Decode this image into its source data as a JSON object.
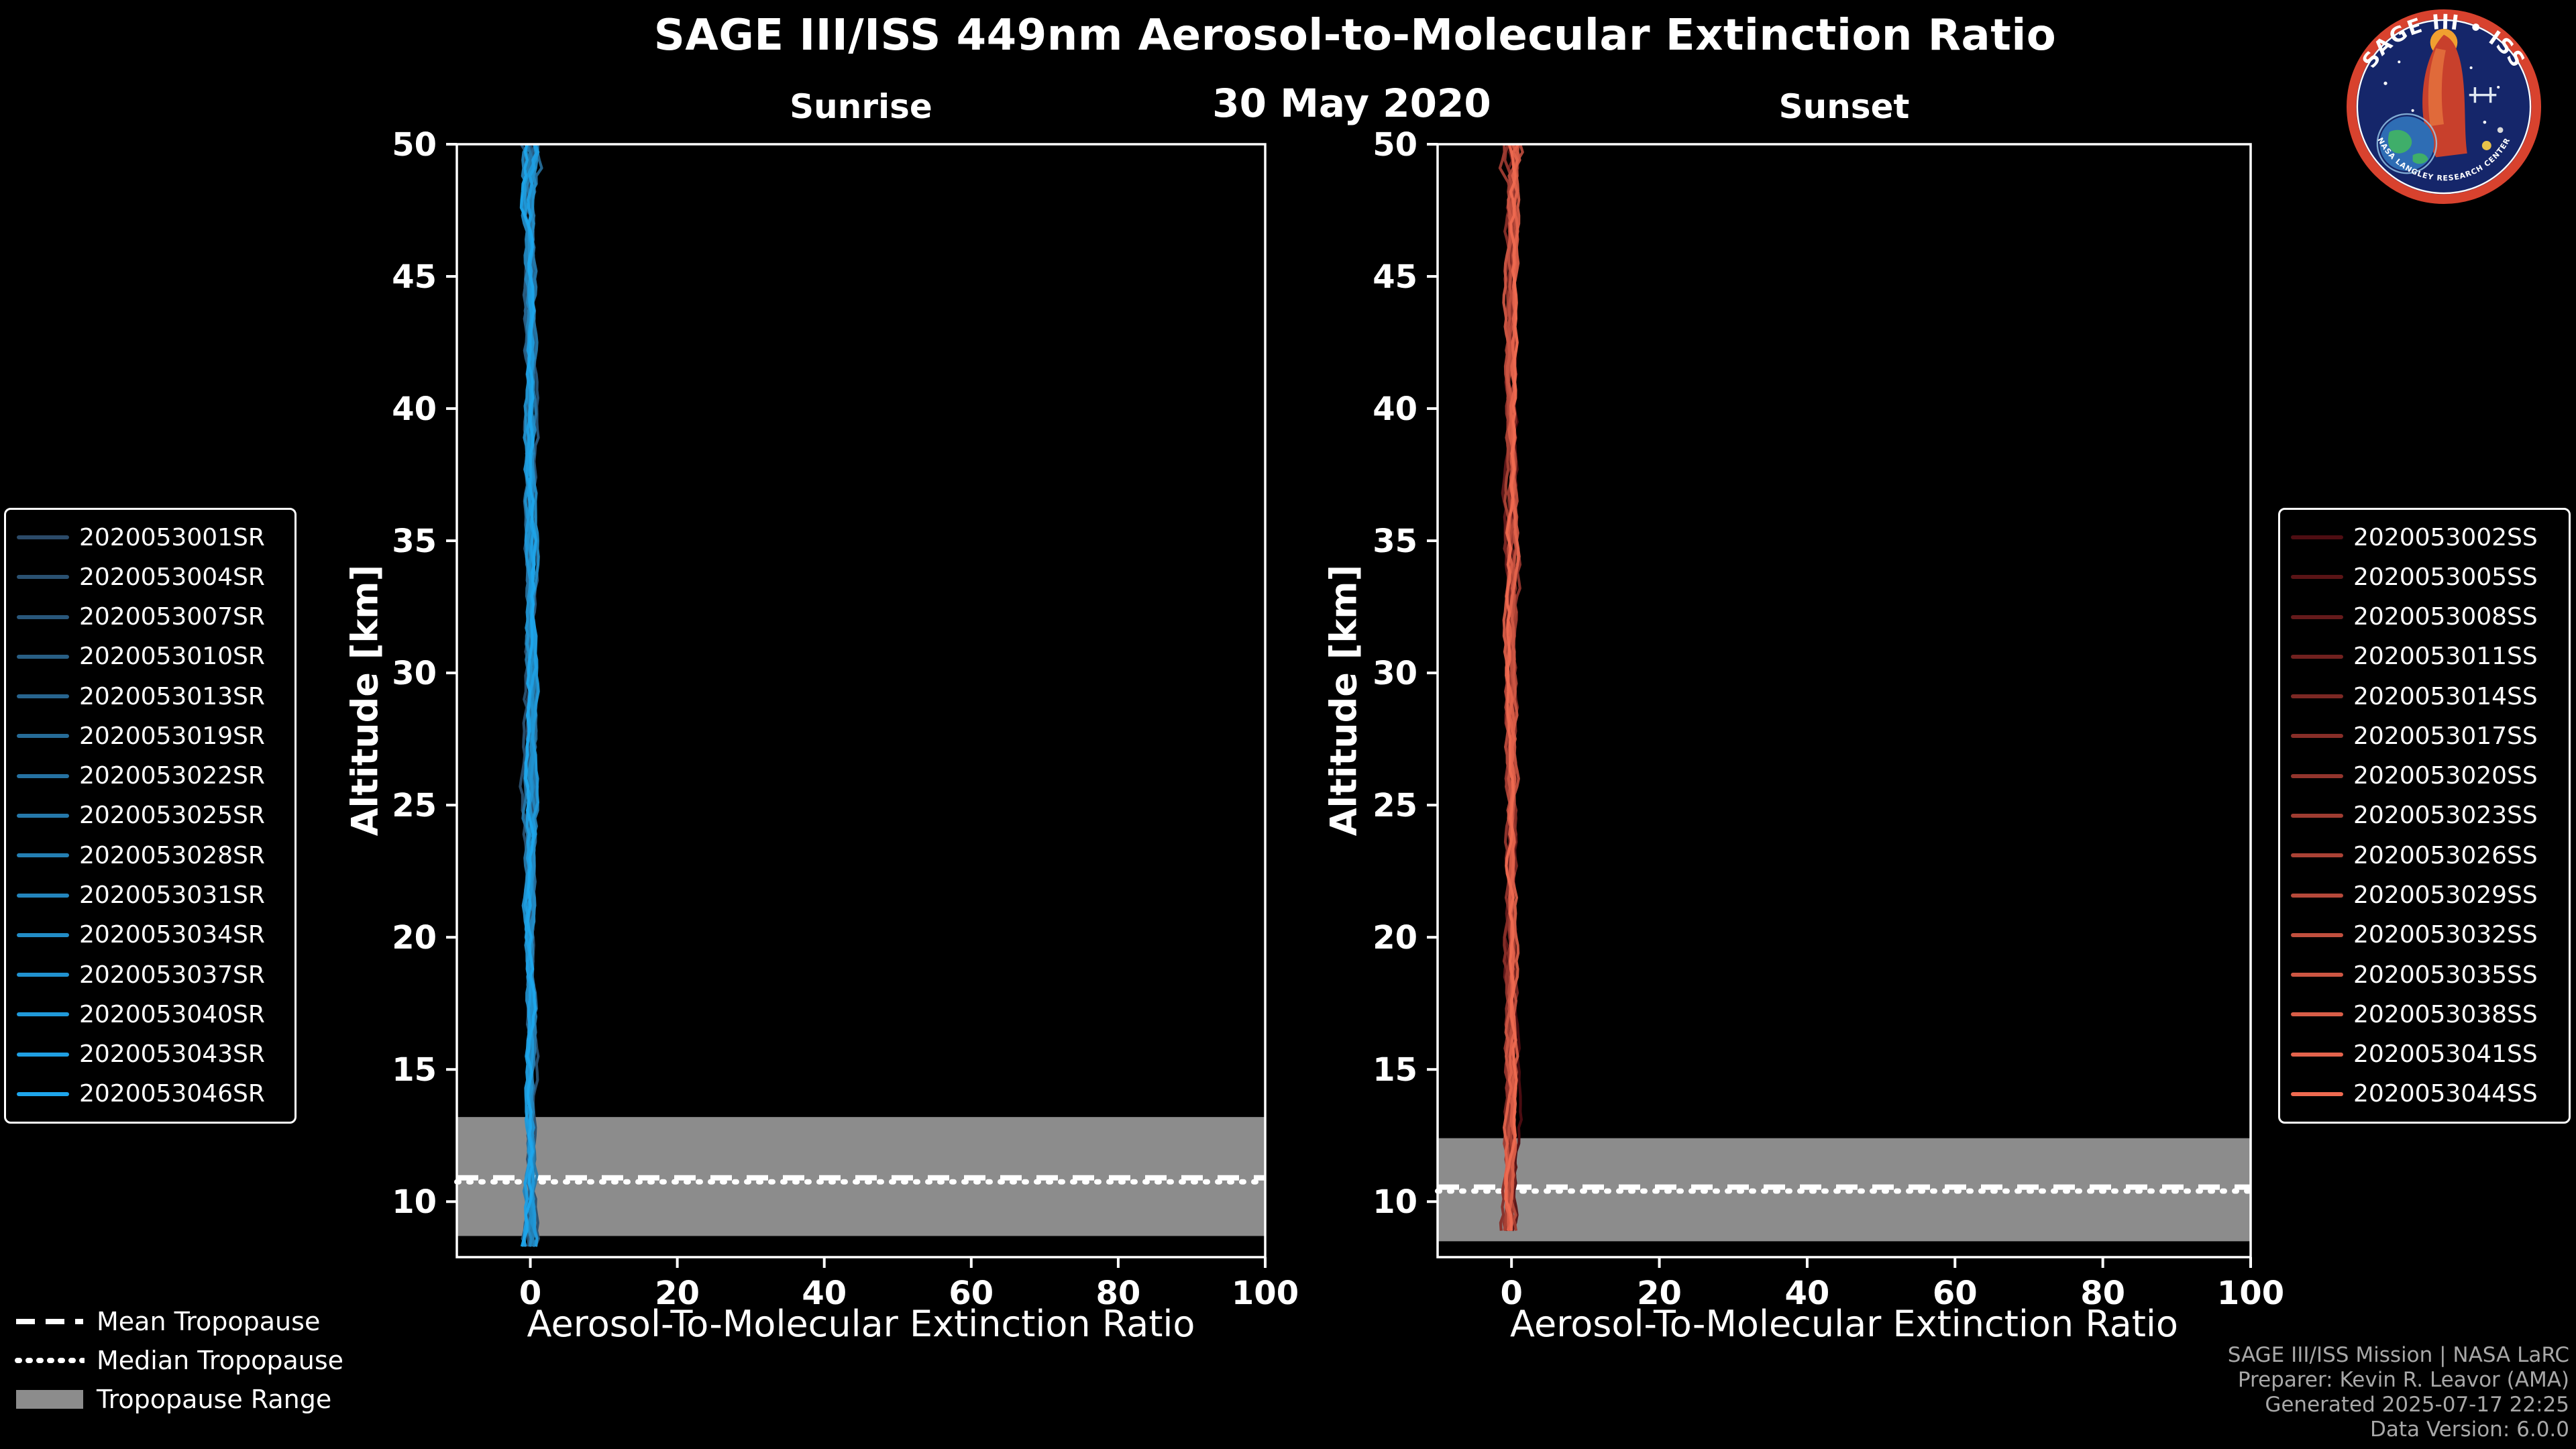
{
  "header": {
    "title": "SAGE III/ISS 449nm Aerosol-to-Molecular Extinction Ratio",
    "date": "30 May 2020"
  },
  "logo": {
    "arc_top": "SAGE III • ISS",
    "arc_bottom": "NASA LANGLEY RESEARCH CENTER",
    "ring_color": "#d8422e",
    "field_color": "#15266a"
  },
  "tropopause_legend": {
    "mean_label": "Mean Tropopause",
    "median_label": "Median Tropopause",
    "range_label": "Tropopause Range",
    "range_color": "#8c8c8c"
  },
  "credits": {
    "line1": "SAGE III/ISS Mission | NASA LaRC",
    "line2": "Preparer: Kevin R. Leavor (AMA)",
    "line3": "Generated 2025-07-17 22:25",
    "line4": "Data Version: 6.0.0"
  },
  "chart_data": [
    {
      "type": "line",
      "id": "sunrise",
      "title": "Sunrise",
      "xlabel": "Aerosol-To-Molecular Extinction Ratio",
      "ylabel": "Altitude [km]",
      "xlim": [
        -10,
        100
      ],
      "ylim": [
        7.9,
        50
      ],
      "xticks": [
        0,
        20,
        40,
        60,
        80,
        100
      ],
      "yticks": [
        10,
        15,
        20,
        25,
        30,
        35,
        40,
        45,
        50
      ],
      "grid": false,
      "legend_position": "outside-left",
      "colormap": {
        "start": "#2b4a68",
        "end": "#1ea6ec"
      },
      "series": [
        "2020053001SR",
        "2020053004SR",
        "2020053007SR",
        "2020053010SR",
        "2020053013SR",
        "2020053019SR",
        "2020053022SR",
        "2020053025SR",
        "2020053028SR",
        "2020053031SR",
        "2020053034SR",
        "2020053037SR",
        "2020053040SR",
        "2020053043SR",
        "2020053046SR"
      ],
      "values_summary": "All 15 sunrise extinction-ratio profiles lie at ~0 (within ±2) from ~8.2 km up to 50 km",
      "representative_profile": {
        "altitude_km": [
          8.2,
          10,
          15,
          20,
          25,
          30,
          35,
          40,
          45,
          50
        ],
        "ratio": [
          0,
          0,
          0,
          0,
          0,
          0,
          0,
          0,
          0,
          0
        ]
      },
      "profile": {
        "alt_min_km": 8.2,
        "alt_max_km": 50,
        "ratio_center": 0,
        "ratio_spread": 2
      },
      "tropopause": {
        "mean_km": 10.9,
        "median_km": 10.75,
        "range_km": [
          8.7,
          13.2
        ]
      }
    },
    {
      "type": "line",
      "id": "sunset",
      "title": "Sunset",
      "xlabel": "Aerosol-To-Molecular Extinction Ratio",
      "ylabel": "Altitude [km]",
      "xlim": [
        -10,
        100
      ],
      "ylim": [
        7.9,
        50
      ],
      "xticks": [
        0,
        20,
        40,
        60,
        80,
        100
      ],
      "yticks": [
        10,
        15,
        20,
        25,
        30,
        35,
        40,
        45,
        50
      ],
      "grid": false,
      "legend_position": "outside-right",
      "colormap": {
        "start": "#4e0d12",
        "end": "#ef6a50"
      },
      "series": [
        "2020053002SS",
        "2020053005SS",
        "2020053008SS",
        "2020053011SS",
        "2020053014SS",
        "2020053017SS",
        "2020053020SS",
        "2020053023SS",
        "2020053026SS",
        "2020053029SS",
        "2020053032SS",
        "2020053035SS",
        "2020053038SS",
        "2020053041SS",
        "2020053044SS"
      ],
      "values_summary": "All 15 sunset extinction-ratio profiles lie at ~0 (within ±2) from ~8.8 km up to 50 km",
      "representative_profile": {
        "altitude_km": [
          8.8,
          10,
          15,
          20,
          25,
          30,
          35,
          40,
          45,
          50
        ],
        "ratio": [
          0,
          0,
          0,
          0,
          0,
          0,
          0,
          0,
          0,
          0
        ]
      },
      "profile": {
        "alt_min_km": 8.8,
        "alt_max_km": 50,
        "ratio_center": 0,
        "ratio_spread": 2
      },
      "tropopause": {
        "mean_km": 10.55,
        "median_km": 10.4,
        "range_km": [
          8.5,
          12.4
        ]
      }
    }
  ]
}
